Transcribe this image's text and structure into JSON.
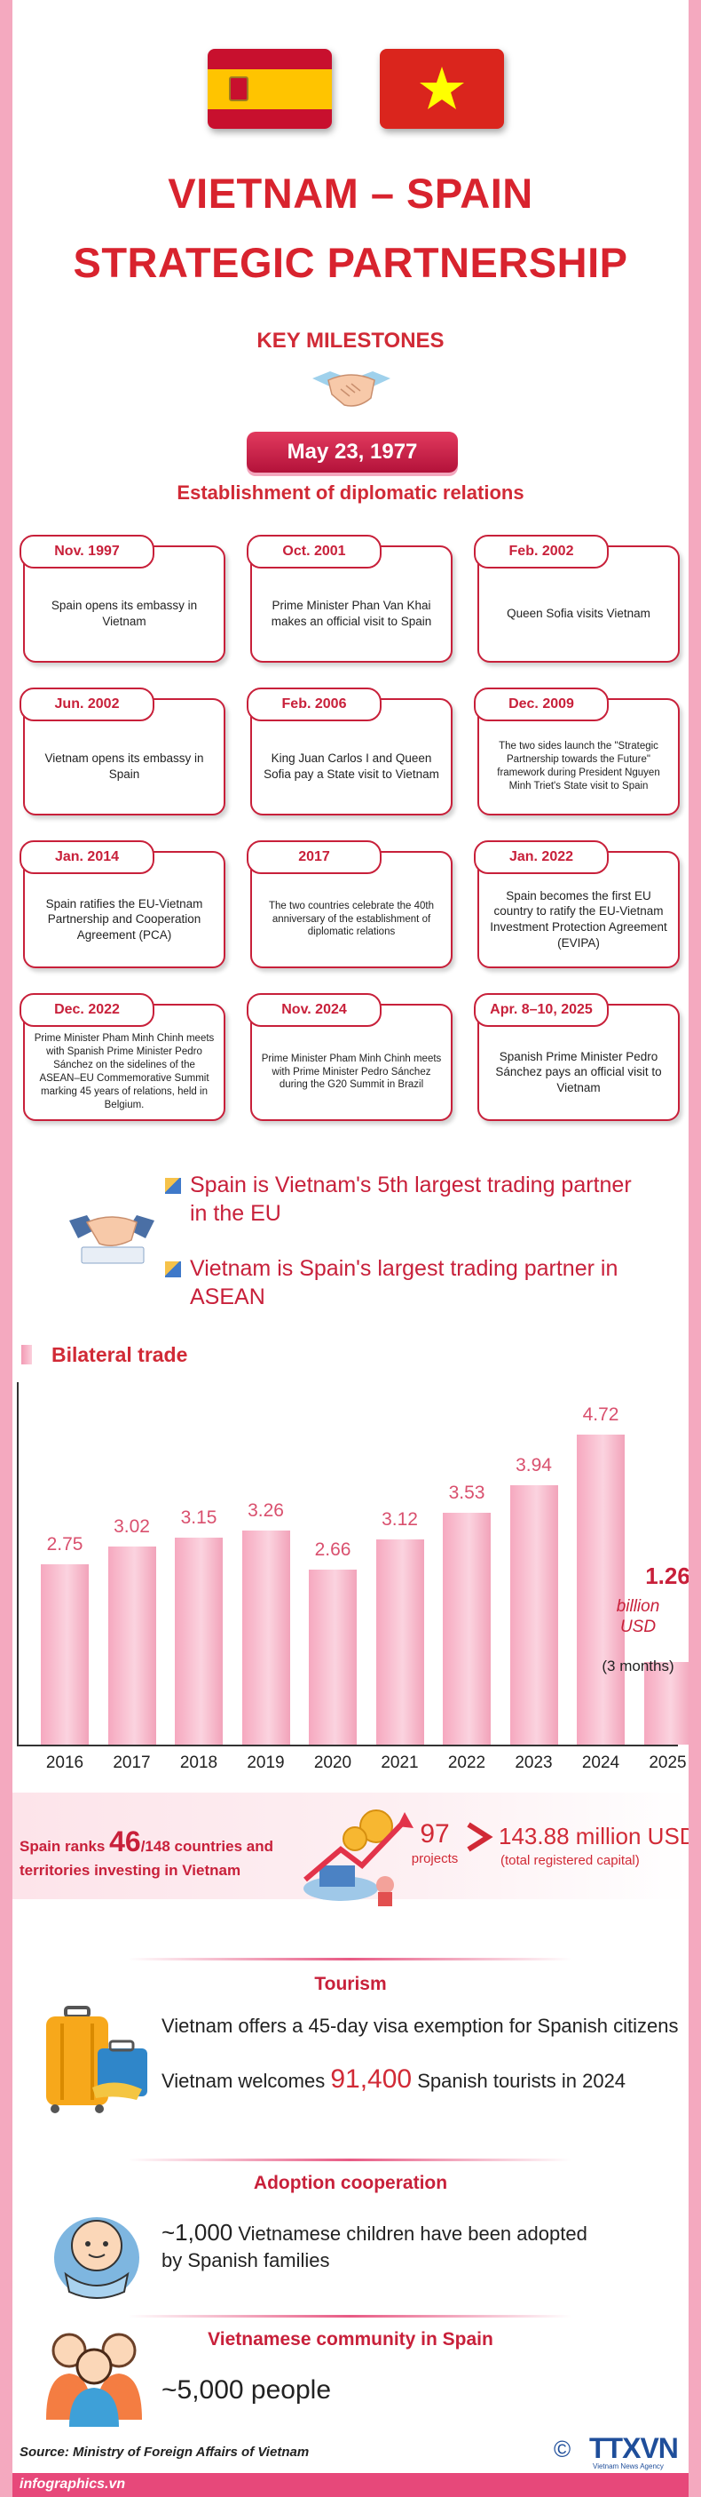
{
  "header": {
    "title_line1": "VIETNAM – SPAIN",
    "title_line2": "STRATEGIC PARTNERSHIP",
    "key_milestones": "KEY MILESTONES",
    "first_date": "May 23, 1977",
    "first_event": "Establishment of diplomatic relations"
  },
  "milestones": [
    {
      "date": "Nov. 1997",
      "text": "Spain opens its embassy in Vietnam"
    },
    {
      "date": "Oct. 2001",
      "text": "Prime Minister Phan Van Khai makes an official visit to Spain"
    },
    {
      "date": "Feb. 2002",
      "text": "Queen Sofia visits Vietnam"
    },
    {
      "date": "Jun. 2002",
      "text": "Vietnam opens its embassy in Spain"
    },
    {
      "date": "Feb. 2006",
      "text": "King Juan Carlos I and Queen Sofia pay a State visit to Vietnam"
    },
    {
      "date": "Dec. 2009",
      "text": "The two sides launch the \"Strategic Partnership towards the Future\" framework during President Nguyen Minh Triet's State visit to Spain"
    },
    {
      "date": "Jan. 2014",
      "text": "Spain ratifies the EU-Vietnam Partnership and Cooperation Agreement (PCA)"
    },
    {
      "date": "2017",
      "text": "The two countries celebrate the 40th anniversary of the establishment of diplomatic relations"
    },
    {
      "date": "Jan. 2022",
      "text": "Spain becomes the first EU country to ratify the EU-Vietnam Investment Protection Agreement (EVIPA)"
    },
    {
      "date": "Dec. 2022",
      "text": "Prime Minister Pham Minh Chinh meets with Spanish Prime Minister Pedro Sánchez on the sidelines of the ASEAN–EU Commemorative Summit marking 45 years of relations, held in Belgium."
    },
    {
      "date": "Nov. 2024",
      "text": "Prime Minister Pham Minh Chinh meets with Prime Minister Pedro Sánchez during the G20 Summit in Brazil"
    },
    {
      "date": "Apr. 8–10, 2025",
      "text": "Spanish Prime Minister Pedro Sánchez pays an official visit to Vietnam"
    }
  ],
  "trade_partners": {
    "line1": "Spain is Vietnam's 5th largest trading partner in the EU",
    "line2": "Vietnam is Spain's largest trading partner in ASEAN"
  },
  "chart_data": {
    "type": "bar",
    "title": "Bilateral trade",
    "categories": [
      "2016",
      "2017",
      "2018",
      "2019",
      "2020",
      "2021",
      "2022",
      "2023",
      "2024",
      "2025"
    ],
    "values": [
      2.75,
      3.02,
      3.15,
      3.26,
      2.66,
      3.12,
      3.53,
      3.94,
      4.72,
      1.26
    ],
    "value_labels": [
      "2.75",
      "3.02",
      "3.15",
      "3.26",
      "2.66",
      "3.12",
      "3.53",
      "3.94",
      "4.72",
      "1.26"
    ],
    "last_category_note": "(3 months)",
    "last_value_unit_line1": "billion",
    "last_value_unit_line2": "USD",
    "ylim": [
      0,
      5.0
    ],
    "grid": false
  },
  "investment": {
    "rank_prefix": "Spain ranks ",
    "rank": "46",
    "rank_suffix": "/148 countries and",
    "rank_line2": "territories investing in Vietnam",
    "projects_count": "97",
    "projects_label": "projects",
    "capital_value": "143.88",
    "capital_unit": " million USD",
    "capital_note": "(total registered capital)"
  },
  "tourism": {
    "title": "Tourism",
    "line1": "Vietnam offers a 45-day visa exemption for Spanish citizens",
    "line2_prefix": "Vietnam welcomes ",
    "line2_value": "91,400",
    "line2_suffix": " Spanish tourists in 2024"
  },
  "adoption": {
    "title": "Adoption cooperation",
    "value": "~1,000",
    "line1_suffix": " Vietnamese children have been adopted",
    "line2": "by Spanish families"
  },
  "community": {
    "title": "Vietnamese community in Spain",
    "value": "~5,000 people"
  },
  "footer": {
    "source": "Source: Ministry of Foreign Affairs of Vietnam",
    "site": "infographics.vn",
    "logo": "TTXVN",
    "logo_sub": "Vietnam News Agency",
    "copyright": "©"
  },
  "colors": {
    "primary_red": "#d12a36",
    "pink": "#f4a9bf",
    "bar": "#f6a8bf"
  }
}
